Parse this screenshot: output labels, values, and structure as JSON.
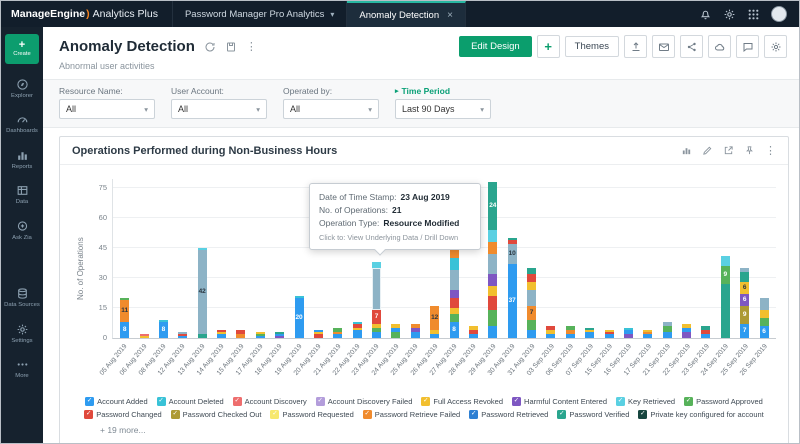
{
  "icons": {
    "chevron_down": "▾",
    "close": "×",
    "kebab": "⋮",
    "check": "✓",
    "plus": "+",
    "marker": "▸"
  },
  "topbar": {
    "brand_name": "ManageEngine",
    "brand_mark": ")",
    "brand_product": "Analytics Plus",
    "workspace_tab": "Password Manager Pro Analytics",
    "active_tab": "Anomaly Detection"
  },
  "sidebar": {
    "create_label": "Create",
    "items": [
      {
        "id": "explorer",
        "label": "Explorer"
      },
      {
        "id": "dashboards",
        "label": "Dashboards"
      },
      {
        "id": "reports",
        "label": "Reports"
      },
      {
        "id": "data",
        "label": "Data"
      },
      {
        "id": "ask-zia",
        "label": "Ask Zia"
      },
      {
        "id": "data-sources",
        "label": "Data Sources",
        "gap_before": true
      },
      {
        "id": "settings",
        "label": "Settings"
      },
      {
        "id": "more",
        "label": "More"
      }
    ]
  },
  "header": {
    "title": "Anomaly Detection",
    "subtitle": "Abnormal user activities",
    "edit_design": "Edit Design",
    "add": "+",
    "themes": "Themes"
  },
  "filters": [
    {
      "label": "Resource Name:",
      "value": "All",
      "highlight": false
    },
    {
      "label": "User Account:",
      "value": "All",
      "highlight": false
    },
    {
      "label": "Operated by:",
      "value": "All",
      "highlight": false
    },
    {
      "label": "Time Period",
      "value": "Last 90 Days",
      "highlight": true
    }
  ],
  "panel": {
    "title": "Operations Performed during Non-Business Hours"
  },
  "tooltip": {
    "date_label": "Date of Time Stamp:",
    "date_value": "23 Aug 2019",
    "ops_label": "No. of Operations:",
    "ops_value": "21",
    "type_label": "Operation Type:",
    "type_value": "Resource Modified",
    "footer": "Click to: View Underlying Data / Drill Down"
  },
  "chart_data": {
    "type": "bar",
    "stacked": true,
    "title": "Operations Performed during Non-Business Hours",
    "xlabel": "",
    "ylabel": "No. of Operations",
    "yticks": [
      0,
      15,
      30,
      45,
      60,
      75
    ],
    "ylim": [
      0,
      80
    ],
    "grid": "horizontal",
    "palette": {
      "blue": "#2e9bf0",
      "dkblue": "#2f80d3",
      "cyan": "#39c2d7",
      "ltcyan": "#5ad0e2",
      "salmon": "#ee6e6e",
      "red": "#e0493c",
      "lavender": "#b39ddb",
      "purple": "#7e57c2",
      "yellow": "#f2bf2f",
      "paleyellow": "#f7e86e",
      "green": "#57b25a",
      "olive": "#ad9a34",
      "orange": "#f08b2d",
      "teal": "#2aa58e",
      "dkteal": "#17463f",
      "slate": "#8db3c6"
    },
    "categories": [
      "05 Aug 2019",
      "06 Aug 2019",
      "08 Aug 2019",
      "12 Aug 2019",
      "13 Aug 2019",
      "14 Aug 2019",
      "15 Aug 2019",
      "17 Aug 2019",
      "18 Aug 2019",
      "19 Aug 2019",
      "20 Aug 2019",
      "21 Aug 2019",
      "22 Aug 2019",
      "23 Aug 2019",
      "24 Aug 2019",
      "25 Aug 2019",
      "26 Aug 2019",
      "27 Aug 2019",
      "28 Aug 2019",
      "29 Aug 2019",
      "30 Aug 2019",
      "31 Aug 2019",
      "03 Sep 2019",
      "06 Sep 2019",
      "07 Sep 2019",
      "15 Sep 2019",
      "16 Sep 2019",
      "17 Sep 2019",
      "21 Sep 2019",
      "22 Sep 2019",
      "23 Sep 2019",
      "24 Sep 2019",
      "25 Sep 2019",
      "26 Sep 2019"
    ],
    "bars": [
      {
        "date": "05 Aug 2019",
        "segments": [
          {
            "c": "blue",
            "v": 8,
            "l": "8"
          },
          {
            "c": "orange",
            "v": 11,
            "l": "11"
          },
          {
            "c": "green",
            "v": 1
          }
        ]
      },
      {
        "date": "06 Aug 2019",
        "segments": [
          {
            "c": "yellow",
            "v": 1
          },
          {
            "c": "salmon",
            "v": 1
          }
        ]
      },
      {
        "date": "08 Aug 2019",
        "segments": [
          {
            "c": "blue",
            "v": 8,
            "l": "8"
          },
          {
            "c": "cyan",
            "v": 1
          }
        ]
      },
      {
        "date": "12 Aug 2019",
        "segments": [
          {
            "c": "blue",
            "v": 1
          },
          {
            "c": "red",
            "v": 1
          },
          {
            "c": "slate",
            "v": 1
          }
        ]
      },
      {
        "date": "13 Aug 2019",
        "segments": [
          {
            "c": "teal",
            "v": 2
          },
          {
            "c": "slate",
            "v": 42,
            "l": "42"
          },
          {
            "c": "ltcyan",
            "v": 1
          }
        ]
      },
      {
        "date": "14 Aug 2019",
        "segments": [
          {
            "c": "blue",
            "v": 2
          },
          {
            "c": "yellow",
            "v": 1
          },
          {
            "c": "red",
            "v": 1
          }
        ]
      },
      {
        "date": "15 Aug 2019",
        "segments": [
          {
            "c": "orange",
            "v": 2
          },
          {
            "c": "red",
            "v": 2
          }
        ]
      },
      {
        "date": "17 Aug 2019",
        "segments": [
          {
            "c": "blue",
            "v": 1
          },
          {
            "c": "green",
            "v": 1
          },
          {
            "c": "yellow",
            "v": 1
          }
        ]
      },
      {
        "date": "18 Aug 2019",
        "segments": [
          {
            "c": "purple",
            "v": 1
          },
          {
            "c": "blue",
            "v": 1
          },
          {
            "c": "teal",
            "v": 1
          }
        ]
      },
      {
        "date": "19 Aug 2019",
        "segments": [
          {
            "c": "blue",
            "v": 20,
            "l": "20"
          },
          {
            "c": "cyan",
            "v": 1
          }
        ]
      },
      {
        "date": "20 Aug 2019",
        "segments": [
          {
            "c": "red",
            "v": 2
          },
          {
            "c": "yellow",
            "v": 1
          },
          {
            "c": "blue",
            "v": 1
          }
        ]
      },
      {
        "date": "21 Aug 2019",
        "segments": [
          {
            "c": "blue",
            "v": 2
          },
          {
            "c": "orange",
            "v": 1
          },
          {
            "c": "green",
            "v": 2
          }
        ]
      },
      {
        "date": "22 Aug 2019",
        "segments": [
          {
            "c": "blue",
            "v": 4
          },
          {
            "c": "yellow",
            "v": 1
          },
          {
            "c": "red",
            "v": 2
          },
          {
            "c": "cyan",
            "v": 1
          }
        ]
      },
      {
        "date": "23 Aug 2019",
        "segments": [
          {
            "c": "blue",
            "v": 3
          },
          {
            "c": "green",
            "v": 2
          },
          {
            "c": "yellow",
            "v": 2
          },
          {
            "c": "red",
            "v": 7,
            "l": "7"
          },
          {
            "c": "slate",
            "v": 21,
            "h": true
          },
          {
            "c": "ltcyan",
            "v": 3
          }
        ]
      },
      {
        "date": "24 Aug 2019",
        "segments": [
          {
            "c": "green",
            "v": 3
          },
          {
            "c": "blue",
            "v": 2
          },
          {
            "c": "yellow",
            "v": 2
          }
        ]
      },
      {
        "date": "25 Aug 2019",
        "segments": [
          {
            "c": "blue",
            "v": 3
          },
          {
            "c": "purple",
            "v": 2
          },
          {
            "c": "orange",
            "v": 2
          }
        ]
      },
      {
        "date": "26 Aug 2019",
        "segments": [
          {
            "c": "blue",
            "v": 2
          },
          {
            "c": "yellow",
            "v": 2
          },
          {
            "c": "orange",
            "v": 12,
            "l": "12"
          }
        ]
      },
      {
        "date": "27 Aug 2019",
        "segments": [
          {
            "c": "blue",
            "v": 8,
            "l": "8"
          },
          {
            "c": "green",
            "v": 4
          },
          {
            "c": "yellow",
            "v": 3
          },
          {
            "c": "red",
            "v": 5
          },
          {
            "c": "purple",
            "v": 4
          },
          {
            "c": "slate",
            "v": 10
          },
          {
            "c": "cyan",
            "v": 6
          },
          {
            "c": "orange",
            "v": 5
          }
        ]
      },
      {
        "date": "28 Aug 2019",
        "segments": [
          {
            "c": "blue",
            "v": 2
          },
          {
            "c": "red",
            "v": 2
          },
          {
            "c": "yellow",
            "v": 2
          }
        ]
      },
      {
        "date": "29 Aug 2019",
        "segments": [
          {
            "c": "blue",
            "v": 6
          },
          {
            "c": "green",
            "v": 8
          },
          {
            "c": "red",
            "v": 7
          },
          {
            "c": "yellow",
            "v": 5
          },
          {
            "c": "purple",
            "v": 6
          },
          {
            "c": "slate",
            "v": 10
          },
          {
            "c": "orange",
            "v": 6
          },
          {
            "c": "ltcyan",
            "v": 6
          },
          {
            "c": "teal",
            "v": 24,
            "l": "24"
          }
        ]
      },
      {
        "date": "30 Aug 2019",
        "segments": [
          {
            "c": "blue",
            "v": 37,
            "l": "37"
          },
          {
            "c": "slate",
            "v": 10,
            "l": "10"
          },
          {
            "c": "red",
            "v": 2
          },
          {
            "c": "teal",
            "v": 1
          }
        ]
      },
      {
        "date": "31 Aug 2019",
        "segments": [
          {
            "c": "blue",
            "v": 4
          },
          {
            "c": "green",
            "v": 5
          },
          {
            "c": "orange",
            "v": 7,
            "l": "7"
          },
          {
            "c": "slate",
            "v": 8
          },
          {
            "c": "yellow",
            "v": 4
          },
          {
            "c": "red",
            "v": 4
          },
          {
            "c": "teal",
            "v": 3
          }
        ]
      },
      {
        "date": "03 Sep 2019",
        "segments": [
          {
            "c": "blue",
            "v": 2
          },
          {
            "c": "yellow",
            "v": 2
          },
          {
            "c": "red",
            "v": 2
          }
        ]
      },
      {
        "date": "06 Sep 2019",
        "segments": [
          {
            "c": "blue",
            "v": 2
          },
          {
            "c": "orange",
            "v": 2
          },
          {
            "c": "green",
            "v": 2
          }
        ]
      },
      {
        "date": "07 Sep 2019",
        "segments": [
          {
            "c": "blue",
            "v": 3
          },
          {
            "c": "yellow",
            "v": 1
          },
          {
            "c": "teal",
            "v": 1
          }
        ]
      },
      {
        "date": "15 Sep 2019",
        "segments": [
          {
            "c": "blue",
            "v": 2
          },
          {
            "c": "red",
            "v": 1
          },
          {
            "c": "yellow",
            "v": 1
          }
        ]
      },
      {
        "date": "16 Sep 2019",
        "segments": [
          {
            "c": "purple",
            "v": 2
          },
          {
            "c": "blue",
            "v": 2
          },
          {
            "c": "cyan",
            "v": 1
          }
        ]
      },
      {
        "date": "17 Sep 2019",
        "segments": [
          {
            "c": "blue",
            "v": 2
          },
          {
            "c": "orange",
            "v": 1
          },
          {
            "c": "yellow",
            "v": 1
          }
        ]
      },
      {
        "date": "21 Sep 2019",
        "segments": [
          {
            "c": "blue",
            "v": 3
          },
          {
            "c": "green",
            "v": 3
          },
          {
            "c": "slate",
            "v": 2
          }
        ]
      },
      {
        "date": "22 Sep 2019",
        "segments": [
          {
            "c": "purple",
            "v": 3
          },
          {
            "c": "blue",
            "v": 2
          },
          {
            "c": "yellow",
            "v": 2
          }
        ]
      },
      {
        "date": "23 Sep 2019",
        "segments": [
          {
            "c": "blue",
            "v": 2
          },
          {
            "c": "red",
            "v": 2
          },
          {
            "c": "teal",
            "v": 2
          }
        ]
      },
      {
        "date": "24 Sep 2019",
        "segments": [
          {
            "c": "teal",
            "v": 27
          },
          {
            "c": "green",
            "v": 9,
            "l": "9"
          },
          {
            "c": "ltcyan",
            "v": 5
          }
        ]
      },
      {
        "date": "25 Sep 2019",
        "segments": [
          {
            "c": "blue",
            "v": 7,
            "l": "7"
          },
          {
            "c": "olive",
            "v": 9,
            "l": "9"
          },
          {
            "c": "purple",
            "v": 6,
            "l": "6"
          },
          {
            "c": "yellow",
            "v": 6,
            "l": "6"
          },
          {
            "c": "teal",
            "v": 5
          },
          {
            "c": "slate",
            "v": 2
          }
        ]
      },
      {
        "date": "26 Sep 2019",
        "segments": [
          {
            "c": "blue",
            "v": 6,
            "l": "6"
          },
          {
            "c": "green",
            "v": 4
          },
          {
            "c": "yellow",
            "v": 4
          },
          {
            "c": "slate",
            "v": 6
          }
        ]
      }
    ]
  },
  "legend": {
    "items": [
      {
        "label": "Account Added",
        "color": "#2e9bf0"
      },
      {
        "label": "Account Deleted",
        "color": "#39c2d7"
      },
      {
        "label": "Account Discovery",
        "color": "#ee6e6e"
      },
      {
        "label": "Account Discovery Failed",
        "color": "#b39ddb"
      },
      {
        "label": "Full Access Revoked",
        "color": "#f2bf2f"
      },
      {
        "label": "Harmful Content Entered",
        "color": "#7e57c2"
      },
      {
        "label": "Key Retrieved",
        "color": "#5ad0e2"
      },
      {
        "label": "Password Approved",
        "color": "#57b25a"
      },
      {
        "label": "Password Changed",
        "color": "#e0493c"
      },
      {
        "label": "Password Checked Out",
        "color": "#ad9a34"
      },
      {
        "label": "Password Requested",
        "color": "#f7e86e"
      },
      {
        "label": "Password Retrieve Failed",
        "color": "#f08b2d"
      },
      {
        "label": "Password Retrieved",
        "color": "#2f80d3"
      },
      {
        "label": "Password Verified",
        "color": "#2aa58e"
      },
      {
        "label": "Private key configured for account",
        "color": "#17463f"
      }
    ],
    "more": "+ 19 more..."
  }
}
